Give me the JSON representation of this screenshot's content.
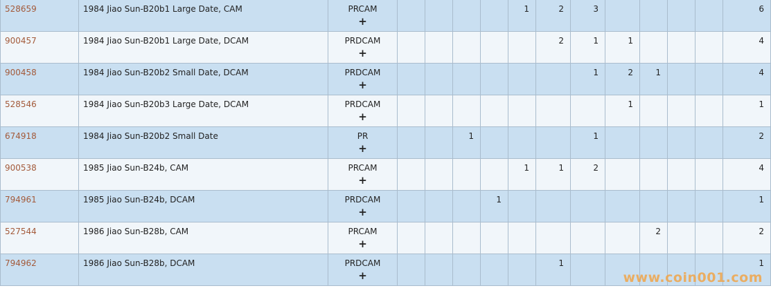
{
  "rows": [
    {
      "id": "528659",
      "description": "1984 Jiao Sun-B20b1 Large Date, CAM",
      "designation": "PRCAM",
      "plus": "+",
      "counts": [
        "",
        "",
        "",
        "",
        "1",
        "2",
        "3",
        "",
        "",
        "",
        ""
      ],
      "total": "6"
    },
    {
      "id": "900457",
      "description": "1984 Jiao Sun-B20b1 Large Date, DCAM",
      "designation": "PRDCAM",
      "plus": "+",
      "counts": [
        "",
        "",
        "",
        "",
        "",
        "2",
        "1",
        "1",
        "",
        "",
        ""
      ],
      "total": "4"
    },
    {
      "id": "900458",
      "description": "1984 Jiao Sun-B20b2 Small Date, DCAM",
      "designation": "PRDCAM",
      "plus": "+",
      "counts": [
        "",
        "",
        "",
        "",
        "",
        "",
        "1",
        "2",
        "1",
        "",
        ""
      ],
      "total": "4"
    },
    {
      "id": "528546",
      "description": "1984 Jiao Sun-B20b3 Large Date, DCAM",
      "designation": "PRDCAM",
      "plus": "+",
      "counts": [
        "",
        "",
        "",
        "",
        "",
        "",
        "",
        "1",
        "",
        "",
        ""
      ],
      "total": "1"
    },
    {
      "id": "674918",
      "description": "1984 Jiao Sun-B20b2 Small Date",
      "designation": "PR",
      "plus": "+",
      "counts": [
        "",
        "",
        "1",
        "",
        "",
        "",
        "1",
        "",
        "",
        "",
        ""
      ],
      "total": "2"
    },
    {
      "id": "900538",
      "description": "1985 Jiao Sun-B24b, CAM",
      "designation": "PRCAM",
      "plus": "+",
      "counts": [
        "",
        "",
        "",
        "",
        "1",
        "1",
        "2",
        "",
        "",
        "",
        ""
      ],
      "total": "4"
    },
    {
      "id": "794961",
      "description": "1985 Jiao Sun-B24b, DCAM",
      "designation": "PRDCAM",
      "plus": "+",
      "counts": [
        "",
        "",
        "",
        "1",
        "",
        "",
        "",
        "",
        "",
        "",
        ""
      ],
      "total": "1"
    },
    {
      "id": "527544",
      "description": "1986 Jiao Sun-B28b, CAM",
      "designation": "PRCAM",
      "plus": "+",
      "counts": [
        "",
        "",
        "",
        "",
        "",
        "",
        "",
        "",
        "2",
        "",
        ""
      ],
      "total": "2"
    },
    {
      "id": "794962",
      "description": "1986 Jiao Sun-B28b, DCAM",
      "designation": "PRDCAM",
      "plus": "+",
      "counts": [
        "",
        "",
        "",
        "",
        "",
        "1",
        "",
        "",
        "",
        "",
        ""
      ],
      "total": "1"
    }
  ],
  "watermark": "www.coin001.com",
  "colors": {
    "row_odd": "#c9dff1",
    "row_even": "#f1f6fa",
    "link": "#a35a3a",
    "watermark": "#f0a54a"
  }
}
